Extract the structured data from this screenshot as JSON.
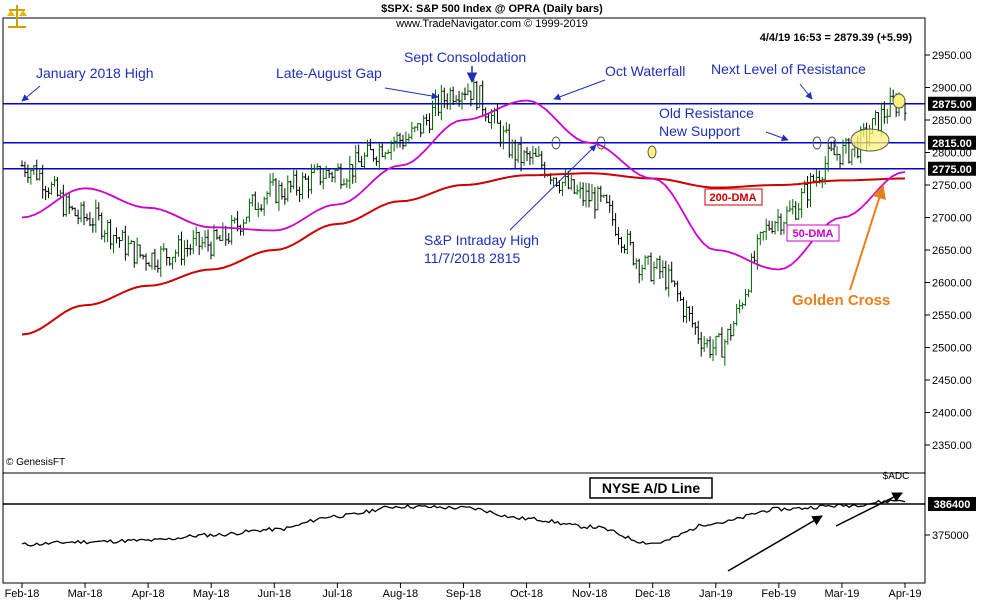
{
  "header": {
    "line1": "$SPX:  S&P 500 Index @ OPRA  (Daily bars)",
    "line2": "www.TradeNavigator.com © 1999-2019",
    "quote": "4/4/19 16:53 = 2879.39 (+5.99)"
  },
  "logo_icon": "scales-icon",
  "copyright": "© GenesisFT",
  "colors": {
    "level_line": "#0000cc",
    "ma200": "#cc0000",
    "ma50": "#cc00cc",
    "bars": "#006600",
    "annotation_text": "#1f2fb8",
    "golden_cross": "#e87f1a",
    "ad_line": "#000000"
  },
  "annotations": {
    "jan_high": "January 2018 High",
    "late_aug_gap": "Late-August Gap",
    "sept_consolidation": "Sept Consolodation",
    "oct_waterfall": "Oct Waterfall",
    "next_level": "Next Level of Resistance",
    "old_resistance": "Old Resistance",
    "new_support": "New Support",
    "intraday_high_1": "S&P Intraday High",
    "intraday_high_2": "11/7/2018 2815",
    "dma200": "200-DMA",
    "dma50": "50-DMA",
    "golden_cross": "Golden Cross",
    "ad_title": "NYSE A/D Line",
    "adc": "$ADC"
  },
  "chart_data": [
    {
      "type": "line",
      "title": "$SPX:  S&P 500 Index @ OPRA  (Daily bars)",
      "bar_style": "daily OHLC bars",
      "x": [
        "Feb-18",
        "Mar-18",
        "Apr-18",
        "May-18",
        "Jun-18",
        "Jul-18",
        "Aug-18",
        "Sep-18",
        "Oct-18",
        "Nov-18",
        "Dec-18",
        "Jan-19",
        "Feb-19",
        "Mar-19",
        "Apr-19"
      ],
      "x_tick_labels": [
        "Feb-18",
        "Mar-18",
        "Apr-18",
        "May-18",
        "Jun-18",
        "Jul-18",
        "Aug-18",
        "Sep-18",
        "Oct-18",
        "Nov-18",
        "Dec-18",
        "Jan-19",
        "Feb-19",
        "Mar-19",
        "Apr-19"
      ],
      "y_tick_labels": [
        "2350.00",
        "2400.00",
        "2450.00",
        "2500.00",
        "2550.00",
        "2600.00",
        "2650.00",
        "2700.00",
        "2750.00",
        "2800.00",
        "2850.00",
        "2900.00",
        "2950.00"
      ],
      "ylim": [
        2330,
        2975
      ],
      "series": [
        {
          "name": "$SPX",
          "values": [
            2780,
            2700,
            2640,
            2660,
            2740,
            2770,
            2820,
            2900,
            2790,
            2730,
            2620,
            2500,
            2700,
            2800,
            2880
          ]
        },
        {
          "name": "200-DMA",
          "values": [
            2520,
            2565,
            2595,
            2620,
            2650,
            2690,
            2725,
            2750,
            2765,
            2768,
            2760,
            2746,
            2750,
            2757,
            2760
          ]
        },
        {
          "name": "50-DMA",
          "values": [
            2700,
            2745,
            2715,
            2685,
            2680,
            2720,
            2780,
            2850,
            2880,
            2815,
            2760,
            2650,
            2620,
            2700,
            2770
          ]
        }
      ],
      "levels": [
        {
          "label": "2875.00",
          "value": 2875
        },
        {
          "label": "2815.00",
          "value": 2815
        },
        {
          "label": "2775.00",
          "value": 2775
        }
      ],
      "grid": false,
      "legend": "none"
    },
    {
      "type": "line",
      "title": "NYSE A/D Line",
      "x": [
        "Feb-18",
        "Mar-18",
        "Apr-18",
        "May-18",
        "Jun-18",
        "Jul-18",
        "Aug-18",
        "Sep-18",
        "Oct-18",
        "Nov-18",
        "Dec-18",
        "Jan-19",
        "Feb-19",
        "Mar-19",
        "Apr-19"
      ],
      "y_tick_labels": [
        "375000",
        "386400"
      ],
      "series": [
        {
          "name": "$ADC",
          "values": [
            371500,
            372500,
            373000,
            375000,
            377000,
            382000,
            385500,
            385000,
            381000,
            378000,
            372000,
            379500,
            384500,
            385800,
            387800
          ]
        }
      ],
      "levels": [
        {
          "label": "386400",
          "value": 386400
        }
      ],
      "grid": false,
      "legend": "none"
    }
  ]
}
